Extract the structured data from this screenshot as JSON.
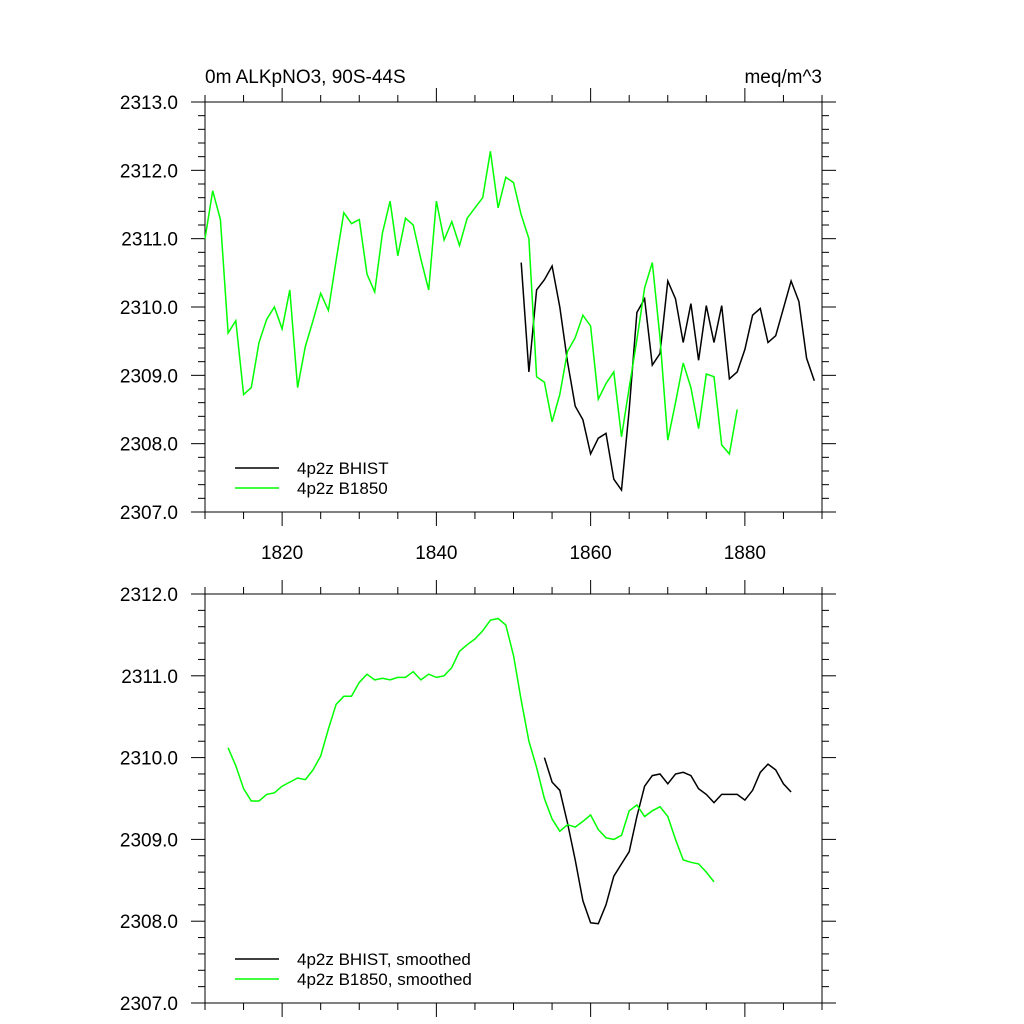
{
  "header": {
    "left": "0m ALKpNO3, 90S-44S",
    "right": "meq/m^3"
  },
  "chart_data": [
    {
      "type": "line",
      "xlim": [
        1810,
        1890
      ],
      "ylim": [
        2307.0,
        2313.0
      ],
      "x_ticks": [
        1820,
        1840,
        1860,
        1880
      ],
      "x_tick_labels": [
        "1820",
        "1840",
        "1860",
        "1880"
      ],
      "y_ticks": [
        2307.0,
        2308.0,
        2309.0,
        2310.0,
        2311.0,
        2312.0,
        2313.0
      ],
      "y_tick_labels": [
        "2307.0",
        "2308.0",
        "2309.0",
        "2310.0",
        "2311.0",
        "2312.0",
        "2313.0"
      ],
      "legend_position": "bottom-left",
      "series": [
        {
          "name": "4p2z BHIST",
          "color": "#000000",
          "x": [
            1851,
            1852,
            1853,
            1854,
            1855,
            1856,
            1857,
            1858,
            1859,
            1860,
            1861,
            1862,
            1863,
            1864,
            1865,
            1866,
            1867,
            1868,
            1869,
            1870,
            1871,
            1872,
            1873,
            1874,
            1875,
            1876,
            1877,
            1878,
            1879,
            1880,
            1881,
            1882,
            1883,
            1884,
            1885,
            1886,
            1887,
            1888,
            1889
          ],
          "y": [
            2310.65,
            2309.05,
            2310.25,
            2310.4,
            2310.6,
            2310.0,
            2309.2,
            2308.55,
            2308.35,
            2307.85,
            2308.08,
            2308.15,
            2307.48,
            2307.32,
            2308.5,
            2309.92,
            2310.12,
            2309.15,
            2309.32,
            2310.38,
            2310.12,
            2309.48,
            2310.05,
            2309.22,
            2310.02,
            2309.48,
            2310.02,
            2308.95,
            2309.05,
            2309.38,
            2309.88,
            2309.98,
            2309.48,
            2309.58,
            2309.98,
            2310.38,
            2310.08,
            2309.25,
            2308.92
          ]
        },
        {
          "name": "4p2z B1850",
          "color": "#00ff00",
          "x": [
            1810,
            1811,
            1812,
            1813,
            1814,
            1815,
            1816,
            1817,
            1818,
            1819,
            1820,
            1821,
            1822,
            1823,
            1824,
            1825,
            1826,
            1827,
            1828,
            1829,
            1830,
            1831,
            1832,
            1833,
            1834,
            1835,
            1836,
            1837,
            1838,
            1839,
            1840,
            1841,
            1842,
            1843,
            1844,
            1845,
            1846,
            1847,
            1848,
            1849,
            1850,
            1851,
            1852,
            1853,
            1854,
            1855,
            1856,
            1857,
            1858,
            1859,
            1860,
            1861,
            1862,
            1863,
            1864,
            1865,
            1866,
            1867,
            1868,
            1869,
            1870,
            1871,
            1872,
            1873,
            1874,
            1875,
            1876,
            1877,
            1878,
            1879
          ],
          "y": [
            2311.0,
            2311.7,
            2311.28,
            2309.62,
            2309.8,
            2308.72,
            2308.82,
            2309.48,
            2309.82,
            2310.0,
            2309.68,
            2310.25,
            2308.82,
            2309.42,
            2309.8,
            2310.2,
            2309.95,
            2310.68,
            2311.38,
            2311.22,
            2311.28,
            2310.48,
            2310.22,
            2311.08,
            2311.55,
            2310.75,
            2311.3,
            2311.2,
            2310.7,
            2310.25,
            2311.55,
            2310.98,
            2311.25,
            2310.9,
            2311.3,
            2311.45,
            2311.6,
            2312.28,
            2311.45,
            2311.9,
            2311.82,
            2311.35,
            2311.0,
            2308.98,
            2308.9,
            2308.32,
            2308.72,
            2309.35,
            2309.55,
            2309.88,
            2309.72,
            2308.65,
            2308.88,
            2309.05,
            2308.1,
            2308.82,
            2309.52,
            2310.28,
            2310.65,
            2309.55,
            2308.05,
            2308.6,
            2309.18,
            2308.82,
            2308.22,
            2309.02,
            2308.98,
            2307.98,
            2307.85,
            2308.5
          ]
        }
      ]
    },
    {
      "type": "line",
      "xlim": [
        1810,
        1890
      ],
      "ylim": [
        2307.0,
        2312.0
      ],
      "y_ticks": [
        2307.0,
        2308.0,
        2309.0,
        2310.0,
        2311.0,
        2312.0
      ],
      "y_tick_labels": [
        "2307.0",
        "2308.0",
        "2309.0",
        "2310.0",
        "2311.0",
        "2312.0"
      ],
      "legend_position": "bottom-left",
      "series": [
        {
          "name": "4p2z BHIST, smoothed",
          "color": "#000000",
          "x": [
            1854,
            1855,
            1856,
            1857,
            1858,
            1859,
            1860,
            1861,
            1862,
            1863,
            1864,
            1865,
            1866,
            1867,
            1868,
            1869,
            1870,
            1871,
            1872,
            1873,
            1874,
            1875,
            1876,
            1877,
            1878,
            1879,
            1880,
            1881,
            1882,
            1883,
            1884,
            1885,
            1886
          ],
          "y": [
            2310.0,
            2309.7,
            2309.6,
            2309.2,
            2308.75,
            2308.25,
            2307.98,
            2307.97,
            2308.2,
            2308.55,
            2308.7,
            2308.85,
            2309.28,
            2309.65,
            2309.78,
            2309.8,
            2309.68,
            2309.8,
            2309.82,
            2309.78,
            2309.62,
            2309.55,
            2309.45,
            2309.55,
            2309.55,
            2309.55,
            2309.48,
            2309.6,
            2309.82,
            2309.92,
            2309.85,
            2309.68,
            2309.58
          ]
        },
        {
          "name": "4p2z B1850, smoothed",
          "color": "#00ff00",
          "x": [
            1813,
            1814,
            1815,
            1816,
            1817,
            1818,
            1819,
            1820,
            1821,
            1822,
            1823,
            1824,
            1825,
            1826,
            1827,
            1828,
            1829,
            1830,
            1831,
            1832,
            1833,
            1834,
            1835,
            1836,
            1837,
            1838,
            1839,
            1840,
            1841,
            1842,
            1843,
            1844,
            1845,
            1846,
            1847,
            1848,
            1849,
            1850,
            1851,
            1852,
            1853,
            1854,
            1855,
            1856,
            1857,
            1858,
            1859,
            1860,
            1861,
            1862,
            1863,
            1864,
            1865,
            1866,
            1867,
            1868,
            1869,
            1870,
            1871,
            1872,
            1873,
            1874,
            1875,
            1876
          ],
          "y": [
            2310.12,
            2309.9,
            2309.62,
            2309.47,
            2309.47,
            2309.55,
            2309.57,
            2309.65,
            2309.7,
            2309.75,
            2309.73,
            2309.85,
            2310.02,
            2310.35,
            2310.65,
            2310.75,
            2310.75,
            2310.92,
            2311.02,
            2310.95,
            2310.97,
            2310.95,
            2310.98,
            2310.98,
            2311.05,
            2310.95,
            2311.02,
            2310.98,
            2311.0,
            2311.1,
            2311.3,
            2311.38,
            2311.45,
            2311.55,
            2311.68,
            2311.7,
            2311.62,
            2311.25,
            2310.7,
            2310.2,
            2309.88,
            2309.5,
            2309.25,
            2309.1,
            2309.18,
            2309.15,
            2309.22,
            2309.3,
            2309.12,
            2309.02,
            2309.0,
            2309.05,
            2309.35,
            2309.42,
            2309.28,
            2309.35,
            2309.4,
            2309.28,
            2309.0,
            2308.75,
            2308.72,
            2308.7,
            2308.6,
            2308.48
          ]
        }
      ]
    }
  ]
}
